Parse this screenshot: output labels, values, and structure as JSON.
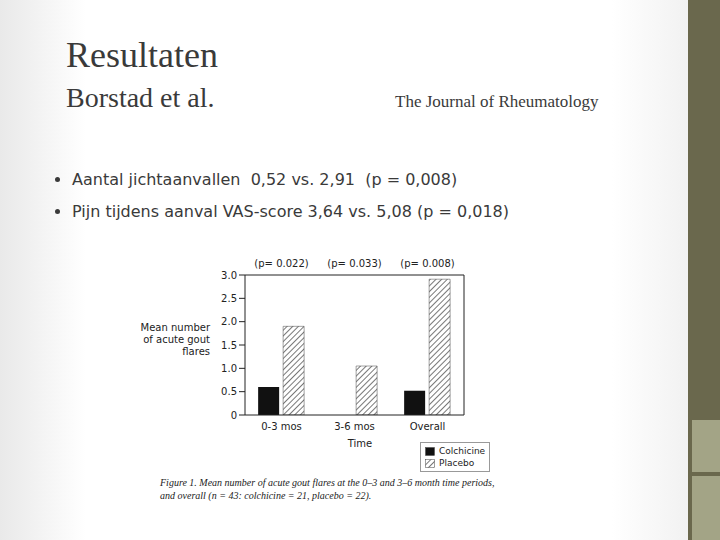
{
  "slide": {
    "title": "Resultaten",
    "subtitle": "Borstad et al.",
    "source": "The Journal of Rheumatology",
    "bullets": [
      "Aantal jichtaanvallen  0,52 vs. 2,91  (p = 0,008)",
      "Pijn tijdens aanval VAS-score 3,64 vs. 5,08 (p = 0,018)"
    ]
  },
  "chart_data": {
    "type": "bar",
    "y_label": "Mean number of acute gout flares",
    "x_label": "Time",
    "caption": "Figure 1. Mean number of acute gout flares at the 0–3 and 3–6 month time periods, and overall (n = 43: colchicine = 21, placebo = 22).",
    "categories": [
      "0-3 mos",
      "3-6 mos",
      "Overall"
    ],
    "annotations": [
      "(p= 0.022)",
      "(p= 0.033)",
      "(p= 0.008)"
    ],
    "series": [
      {
        "name": "Colchicine",
        "color": "#111111",
        "values": [
          0.6,
          0,
          0.52
        ]
      },
      {
        "name": "Placebo",
        "color": "#555555",
        "values": [
          1.9,
          1.05,
          2.91
        ]
      }
    ],
    "ylim": [
      0,
      3
    ],
    "yticks": [
      0,
      0.5,
      {
        "value": 1,
        "label": "1.0"
      },
      {
        "value": 1.5,
        "label": "1.5"
      },
      {
        "value": 2,
        "label": "2.0"
      },
      {
        "value": 2.5,
        "label": "2.5"
      },
      {
        "value": 3,
        "label": "3.0"
      }
    ],
    "legend": "bottom-right"
  }
}
